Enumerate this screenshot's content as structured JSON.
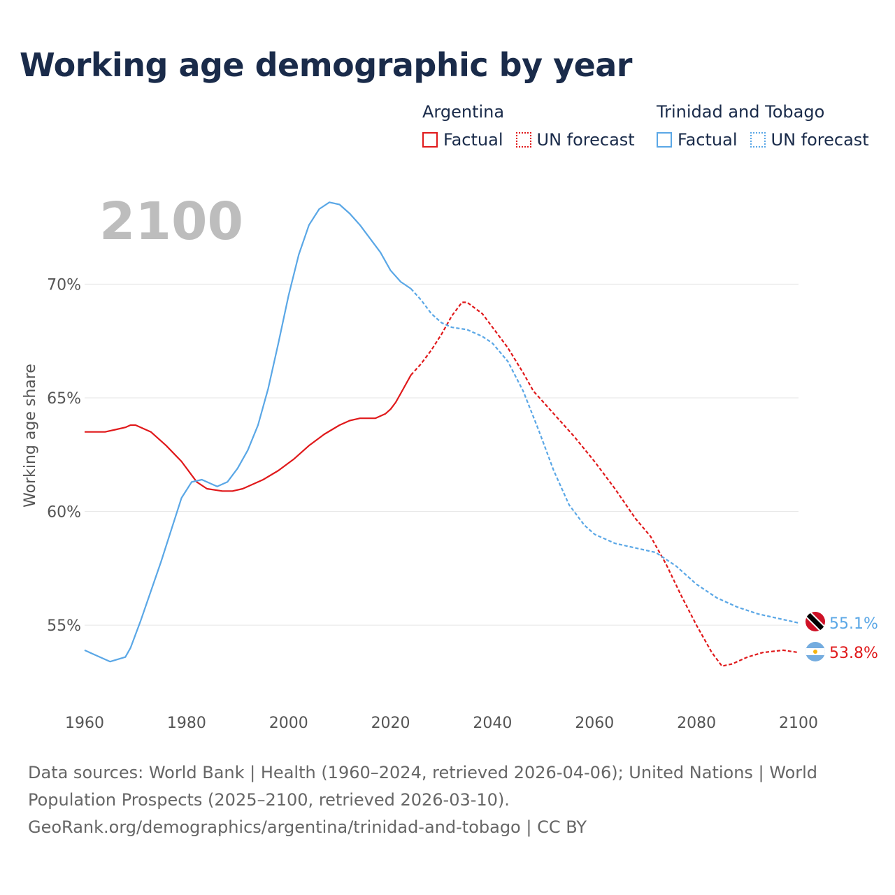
{
  "title": "Working age demographic by year",
  "legend": {
    "groups": [
      {
        "country": "Argentina",
        "factual_label": "Factual",
        "forecast_label": "UN forecast",
        "color": "#e0191b"
      },
      {
        "country": "Trinidad and Tobago",
        "factual_label": "Factual",
        "forecast_label": "UN forecast",
        "color": "#5aa7e6"
      }
    ]
  },
  "year_display": "2100",
  "footer": {
    "line1": "Data sources: World Bank | Health (1960–2024, retrieved 2026-04-06); United Nations | World",
    "line2": "Population Prospects (2025–2100, retrieved 2026-03-10).",
    "line3": "GeoRank.org/demographics/argentina/trinidad-and-tobago | CC BY"
  },
  "chart_data": {
    "type": "line",
    "title": "Working age demographic by year",
    "xlabel": "",
    "ylabel": "Working age share",
    "xlim": [
      1960,
      2100
    ],
    "ylim": [
      51.5,
      74.5
    ],
    "x_ticks": [
      1960,
      1980,
      2000,
      2020,
      2040,
      2060,
      2080,
      2100
    ],
    "y_ticks": [
      55,
      60,
      65,
      70
    ],
    "y_tick_format": "%",
    "grid": true,
    "factual_until": 2024,
    "series": [
      {
        "name": "Argentina",
        "color": "#e0191b",
        "end_label": "53.8%",
        "points": [
          [
            1960,
            63.5
          ],
          [
            1964,
            63.5
          ],
          [
            1966,
            63.6
          ],
          [
            1968,
            63.7
          ],
          [
            1969,
            63.8
          ],
          [
            1970,
            63.8
          ],
          [
            1973,
            63.5
          ],
          [
            1976,
            62.9
          ],
          [
            1979,
            62.2
          ],
          [
            1982,
            61.3
          ],
          [
            1984,
            61.0
          ],
          [
            1987,
            60.9
          ],
          [
            1989,
            60.9
          ],
          [
            1991,
            61.0
          ],
          [
            1995,
            61.4
          ],
          [
            1998,
            61.8
          ],
          [
            2001,
            62.3
          ],
          [
            2004,
            62.9
          ],
          [
            2007,
            63.4
          ],
          [
            2010,
            63.8
          ],
          [
            2012,
            64.0
          ],
          [
            2014,
            64.1
          ],
          [
            2017,
            64.1
          ],
          [
            2019,
            64.3
          ],
          [
            2020,
            64.5
          ],
          [
            2021,
            64.8
          ],
          [
            2022,
            65.2
          ],
          [
            2023,
            65.6
          ],
          [
            2024,
            66.0
          ],
          [
            2026,
            66.5
          ],
          [
            2028,
            67.1
          ],
          [
            2030,
            67.8
          ],
          [
            2032,
            68.6
          ],
          [
            2034,
            69.2
          ],
          [
            2035,
            69.2
          ],
          [
            2038,
            68.7
          ],
          [
            2040,
            68.1
          ],
          [
            2043,
            67.2
          ],
          [
            2046,
            66.1
          ],
          [
            2048,
            65.3
          ],
          [
            2052,
            64.3
          ],
          [
            2056,
            63.3
          ],
          [
            2060,
            62.2
          ],
          [
            2064,
            61.0
          ],
          [
            2068,
            59.7
          ],
          [
            2071,
            58.9
          ],
          [
            2074,
            57.7
          ],
          [
            2077,
            56.3
          ],
          [
            2080,
            55.0
          ],
          [
            2083,
            53.8
          ],
          [
            2085,
            53.2
          ],
          [
            2087,
            53.3
          ],
          [
            2090,
            53.6
          ],
          [
            2093,
            53.8
          ],
          [
            2097,
            53.9
          ],
          [
            2100,
            53.8
          ]
        ]
      },
      {
        "name": "Trinidad and Tobago",
        "color": "#5aa7e6",
        "end_label": "55.1%",
        "points": [
          [
            1960,
            53.9
          ],
          [
            1962,
            53.7
          ],
          [
            1965,
            53.4
          ],
          [
            1968,
            53.6
          ],
          [
            1969,
            54.0
          ],
          [
            1971,
            55.2
          ],
          [
            1973,
            56.5
          ],
          [
            1975,
            57.8
          ],
          [
            1977,
            59.2
          ],
          [
            1979,
            60.6
          ],
          [
            1981,
            61.3
          ],
          [
            1983,
            61.4
          ],
          [
            1986,
            61.1
          ],
          [
            1988,
            61.3
          ],
          [
            1990,
            61.9
          ],
          [
            1992,
            62.7
          ],
          [
            1994,
            63.8
          ],
          [
            1996,
            65.4
          ],
          [
            1998,
            67.4
          ],
          [
            2000,
            69.5
          ],
          [
            2002,
            71.3
          ],
          [
            2004,
            72.6
          ],
          [
            2006,
            73.3
          ],
          [
            2008,
            73.6
          ],
          [
            2010,
            73.5
          ],
          [
            2012,
            73.1
          ],
          [
            2014,
            72.6
          ],
          [
            2016,
            72.0
          ],
          [
            2018,
            71.4
          ],
          [
            2020,
            70.6
          ],
          [
            2022,
            70.1
          ],
          [
            2024,
            69.8
          ],
          [
            2026,
            69.3
          ],
          [
            2028,
            68.7
          ],
          [
            2030,
            68.3
          ],
          [
            2032,
            68.1
          ],
          [
            2035,
            68.0
          ],
          [
            2038,
            67.7
          ],
          [
            2040,
            67.4
          ],
          [
            2043,
            66.6
          ],
          [
            2046,
            65.3
          ],
          [
            2049,
            63.6
          ],
          [
            2052,
            61.8
          ],
          [
            2055,
            60.3
          ],
          [
            2058,
            59.4
          ],
          [
            2060,
            59.0
          ],
          [
            2064,
            58.6
          ],
          [
            2068,
            58.4
          ],
          [
            2072,
            58.2
          ],
          [
            2076,
            57.6
          ],
          [
            2080,
            56.8
          ],
          [
            2084,
            56.2
          ],
          [
            2088,
            55.8
          ],
          [
            2092,
            55.5
          ],
          [
            2096,
            55.3
          ],
          [
            2100,
            55.1
          ]
        ]
      }
    ]
  }
}
